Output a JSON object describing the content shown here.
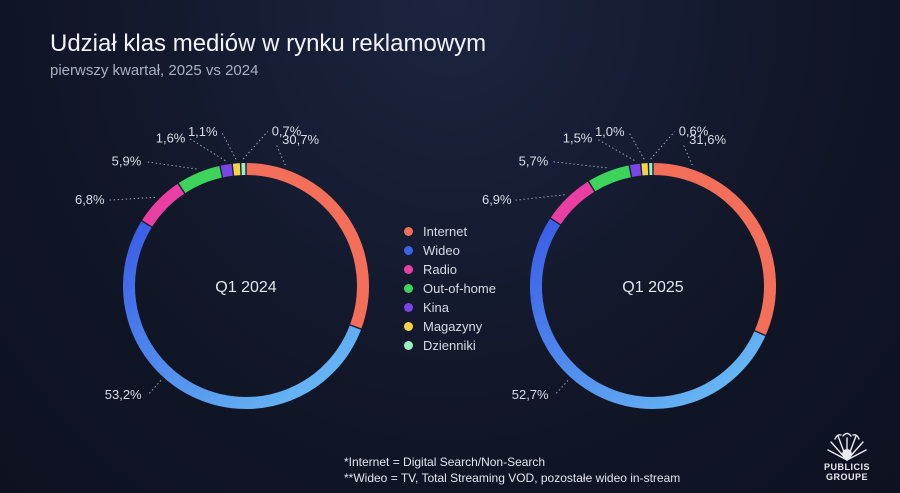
{
  "header": {
    "title": "Udział klas mediów w rynku reklamowym",
    "subtitle": "pierwszy kwartał, 2025 vs 2024"
  },
  "colors": {
    "Internet": "#f36f5a",
    "Wideo": "#3a63e8",
    "Wideo_light": "#63b9f4",
    "Radio": "#ea3fa2",
    "Out-of-home": "#3ed45c",
    "Kina": "#7a45e6",
    "Magazyny": "#f5d24a",
    "Dzienniki": "#9bf0c2"
  },
  "chart_data": [
    {
      "type": "pie",
      "center_label": "Q1 2024",
      "categories": [
        "Internet",
        "Wideo",
        "Radio",
        "Out-of-home",
        "Kina",
        "Magazyny",
        "Dzienniki"
      ],
      "values": [
        30.7,
        53.2,
        6.8,
        5.9,
        1.6,
        1.1,
        0.7
      ],
      "labels": [
        "30,7%",
        "53,2%",
        "6,8%",
        "5,9%",
        "1,6%",
        "1,1%",
        "0,7%"
      ]
    },
    {
      "type": "pie",
      "center_label": "Q1 2025",
      "categories": [
        "Internet",
        "Wideo",
        "Radio",
        "Out-of-home",
        "Kina",
        "Magazyny",
        "Dzienniki"
      ],
      "values": [
        31.6,
        52.7,
        6.9,
        5.7,
        1.5,
        1.0,
        0.6
      ],
      "labels": [
        "31,6%",
        "52,7%",
        "6,9%",
        "5,7%",
        "1,5%",
        "1,0%",
        "0,6%"
      ]
    }
  ],
  "legend": [
    "Internet",
    "Wideo",
    "Radio",
    "Out-of-home",
    "Kina",
    "Magazyny",
    "Dzienniki"
  ],
  "footnotes": {
    "internet": "*Internet = Digital Search/Non-Search",
    "wideo": "**Wideo = TV, Total Streaming VOD, pozostałe wideo in-stream"
  },
  "logo": {
    "line1": "PUBLICIS",
    "line2": "GROUPE"
  }
}
